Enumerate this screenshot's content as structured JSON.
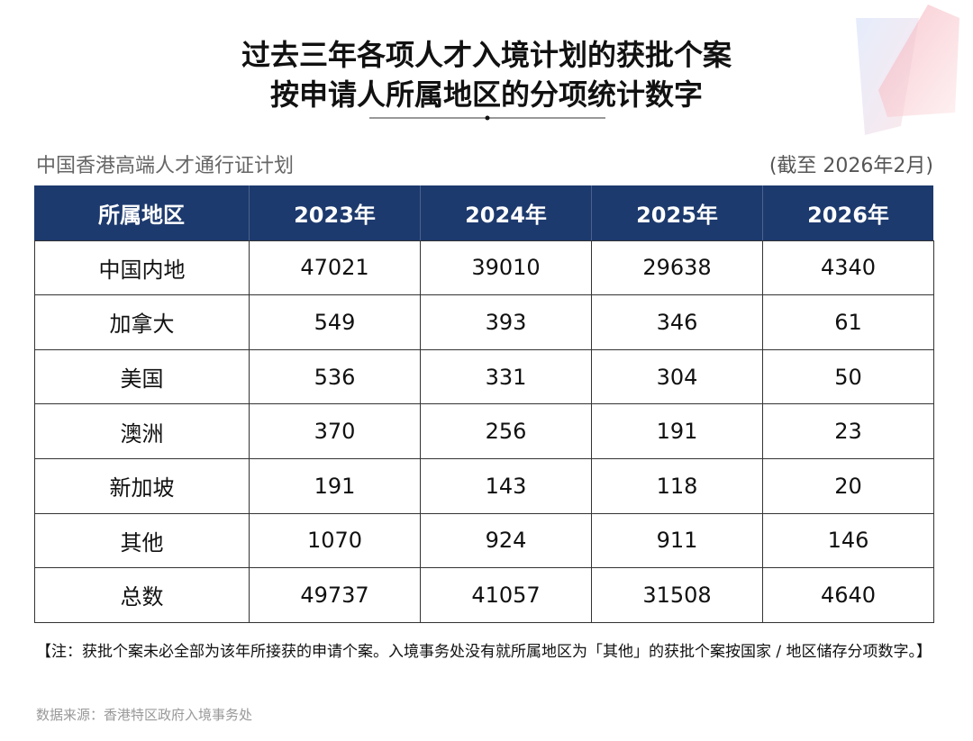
{
  "header": {
    "title_lines": [
      "过去三年各项人才入境计划的获批个案",
      "按申请人所属地区的分项统计数字"
    ]
  },
  "subtitle": "中国香港高端人才通行证计划",
  "as_of": "(截至 2026年2月)",
  "table": {
    "columns": [
      "所属地区",
      "2023年",
      "2024年",
      "2025年",
      "2026年"
    ],
    "rows": [
      [
        "中国内地",
        47021,
        39010,
        29638,
        4340
      ],
      [
        "加拿大",
        549,
        393,
        346,
        61
      ],
      [
        "美国",
        536,
        331,
        304,
        50
      ],
      [
        "澳洲",
        370,
        256,
        191,
        23
      ],
      [
        "新加坡",
        191,
        143,
        118,
        20
      ],
      [
        "其他",
        1070,
        924,
        911,
        146
      ],
      [
        "总数",
        49737,
        41057,
        31508,
        4640
      ]
    ]
  },
  "note": "【注：获批个案未必全部为该年所接获的申请个案。入境事务处没有就所属地区为「其他」的获批个案按国家 / 地区储存分项数字。】",
  "source": "数据来源：香港特区政府入境事务处"
}
